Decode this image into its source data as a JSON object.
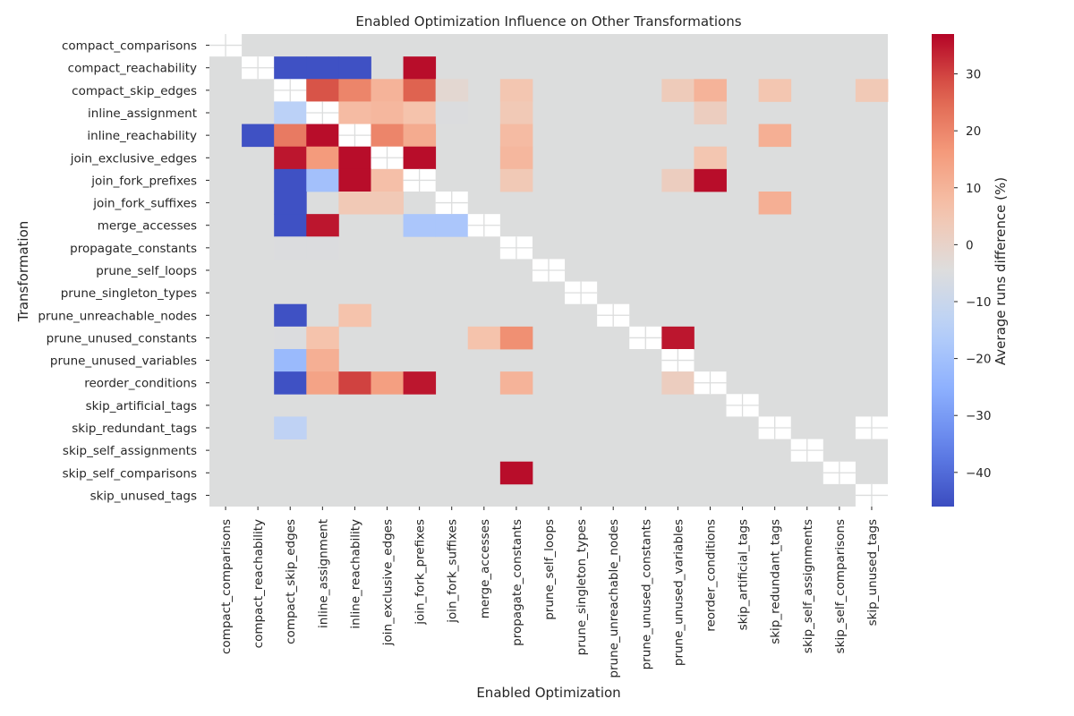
{
  "chart_data": {
    "type": "heatmap",
    "title": "Enabled Optimization Influence on Other Transformations",
    "xlabel": "Enabled Optimization",
    "ylabel": "Transformation",
    "colorbar_label": "Average runs difference (%)",
    "colorbar_ticks": [
      -40,
      -30,
      -20,
      -10,
      0,
      10,
      20,
      30
    ],
    "vmin": -46,
    "vmax": 37,
    "colormap": "coolwarm",
    "nan_color": "#dcdddd",
    "diagonal_cells": "white with cross",
    "grid": false,
    "legend": "colorbar right",
    "x_categories": [
      "compact_comparisons",
      "compact_reachability",
      "compact_skip_edges",
      "inline_assignment",
      "inline_reachability",
      "join_exclusive_edges",
      "join_fork_prefixes",
      "join_fork_suffixes",
      "merge_accesses",
      "propagate_constants",
      "prune_self_loops",
      "prune_singleton_types",
      "prune_unreachable_nodes",
      "prune_unused_constants",
      "prune_unused_variables",
      "reorder_conditions",
      "skip_artificial_tags",
      "skip_redundant_tags",
      "skip_self_assignments",
      "skip_self_comparisons",
      "skip_unused_tags"
    ],
    "y_categories": [
      "compact_comparisons",
      "compact_reachability",
      "compact_skip_edges",
      "inline_assignment",
      "inline_reachability",
      "join_exclusive_edges",
      "join_fork_prefixes",
      "join_fork_suffixes",
      "merge_accesses",
      "propagate_constants",
      "prune_self_loops",
      "prune_singleton_types",
      "prune_unreachable_nodes",
      "prune_unused_constants",
      "prune_unused_variables",
      "reorder_conditions",
      "skip_artificial_tags",
      "skip_redundant_tags",
      "skip_self_assignments",
      "skip_self_comparisons",
      "skip_unused_tags"
    ],
    "values": [
      [
        null,
        null,
        null,
        null,
        null,
        null,
        null,
        null,
        null,
        null,
        null,
        null,
        null,
        null,
        null,
        null,
        null,
        null,
        null,
        null,
        null
      ],
      [
        null,
        null,
        -45,
        -45,
        -45,
        null,
        36,
        null,
        null,
        null,
        null,
        null,
        null,
        null,
        null,
        null,
        null,
        null,
        null,
        null,
        null
      ],
      [
        null,
        null,
        null,
        28,
        20,
        10,
        26,
        -2,
        null,
        5,
        null,
        null,
        null,
        null,
        3,
        10,
        null,
        5,
        null,
        null,
        4
      ],
      [
        null,
        null,
        -14,
        null,
        8,
        9,
        6,
        -5,
        null,
        4,
        null,
        null,
        null,
        null,
        null,
        2,
        null,
        null,
        null,
        null,
        null
      ],
      [
        null,
        -45,
        22,
        36,
        null,
        20,
        12,
        null,
        null,
        8,
        null,
        null,
        null,
        null,
        null,
        null,
        null,
        11,
        null,
        null,
        null
      ],
      [
        null,
        null,
        35,
        16,
        36,
        null,
        36,
        null,
        null,
        9,
        null,
        null,
        null,
        null,
        null,
        5,
        null,
        null,
        null,
        null,
        null
      ],
      [
        null,
        null,
        -45,
        -20,
        36,
        7,
        null,
        null,
        null,
        4,
        null,
        null,
        null,
        null,
        2,
        36,
        null,
        null,
        null,
        null,
        null
      ],
      [
        null,
        null,
        -45,
        null,
        4,
        4,
        null,
        null,
        null,
        null,
        null,
        null,
        null,
        null,
        null,
        null,
        null,
        11,
        null,
        null,
        null
      ],
      [
        null,
        null,
        -45,
        35,
        null,
        null,
        -18,
        -18,
        null,
        null,
        null,
        null,
        null,
        null,
        null,
        null,
        null,
        null,
        null,
        null,
        null
      ],
      [
        null,
        null,
        -5,
        -5,
        null,
        null,
        null,
        null,
        null,
        null,
        null,
        null,
        null,
        null,
        null,
        null,
        null,
        null,
        null,
        null,
        null
      ],
      [
        null,
        null,
        null,
        null,
        null,
        null,
        null,
        null,
        null,
        null,
        null,
        null,
        null,
        null,
        null,
        null,
        null,
        null,
        null,
        null,
        null
      ],
      [
        null,
        null,
        null,
        null,
        null,
        null,
        null,
        null,
        null,
        null,
        null,
        null,
        null,
        null,
        null,
        null,
        null,
        null,
        null,
        null,
        null
      ],
      [
        null,
        null,
        -45,
        null,
        6,
        null,
        null,
        null,
        null,
        null,
        null,
        null,
        null,
        null,
        null,
        null,
        null,
        null,
        null,
        null,
        null
      ],
      [
        null,
        null,
        -5,
        6,
        null,
        null,
        null,
        null,
        6,
        18,
        null,
        null,
        null,
        null,
        35,
        null,
        null,
        null,
        null,
        null,
        null
      ],
      [
        null,
        null,
        -22,
        11,
        null,
        null,
        null,
        null,
        null,
        null,
        null,
        null,
        null,
        null,
        null,
        null,
        null,
        null,
        null,
        null,
        null
      ],
      [
        null,
        null,
        -45,
        14,
        30,
        15,
        35,
        null,
        null,
        10,
        null,
        null,
        null,
        null,
        2,
        null,
        null,
        null,
        null,
        null,
        null
      ],
      [
        null,
        null,
        null,
        null,
        null,
        null,
        null,
        null,
        null,
        null,
        null,
        null,
        null,
        null,
        null,
        null,
        null,
        null,
        null,
        null,
        null
      ],
      [
        null,
        null,
        -13,
        null,
        null,
        null,
        null,
        null,
        null,
        null,
        null,
        null,
        null,
        null,
        null,
        null,
        null,
        null,
        null,
        null,
        null
      ],
      [
        null,
        null,
        null,
        null,
        null,
        null,
        null,
        null,
        null,
        null,
        null,
        null,
        null,
        null,
        null,
        null,
        null,
        null,
        null,
        null,
        null
      ],
      [
        null,
        null,
        null,
        null,
        null,
        null,
        null,
        null,
        null,
        36,
        null,
        null,
        null,
        null,
        null,
        null,
        null,
        null,
        null,
        null,
        null
      ],
      [
        null,
        null,
        null,
        null,
        null,
        null,
        null,
        null,
        null,
        null,
        null,
        null,
        null,
        null,
        null,
        null,
        null,
        null,
        null,
        null,
        null
      ]
    ],
    "white_cells": [
      [
        0,
        0
      ],
      [
        1,
        1
      ],
      [
        2,
        2
      ],
      [
        3,
        3
      ],
      [
        4,
        4
      ],
      [
        5,
        5
      ],
      [
        6,
        6
      ],
      [
        7,
        7
      ],
      [
        8,
        8
      ],
      [
        9,
        9
      ],
      [
        10,
        10
      ],
      [
        11,
        11
      ],
      [
        12,
        12
      ],
      [
        13,
        13
      ],
      [
        14,
        14
      ],
      [
        15,
        15
      ],
      [
        16,
        16
      ],
      [
        17,
        17
      ],
      [
        18,
        18
      ],
      [
        19,
        19
      ],
      [
        20,
        20
      ],
      [
        17,
        20
      ]
    ]
  }
}
